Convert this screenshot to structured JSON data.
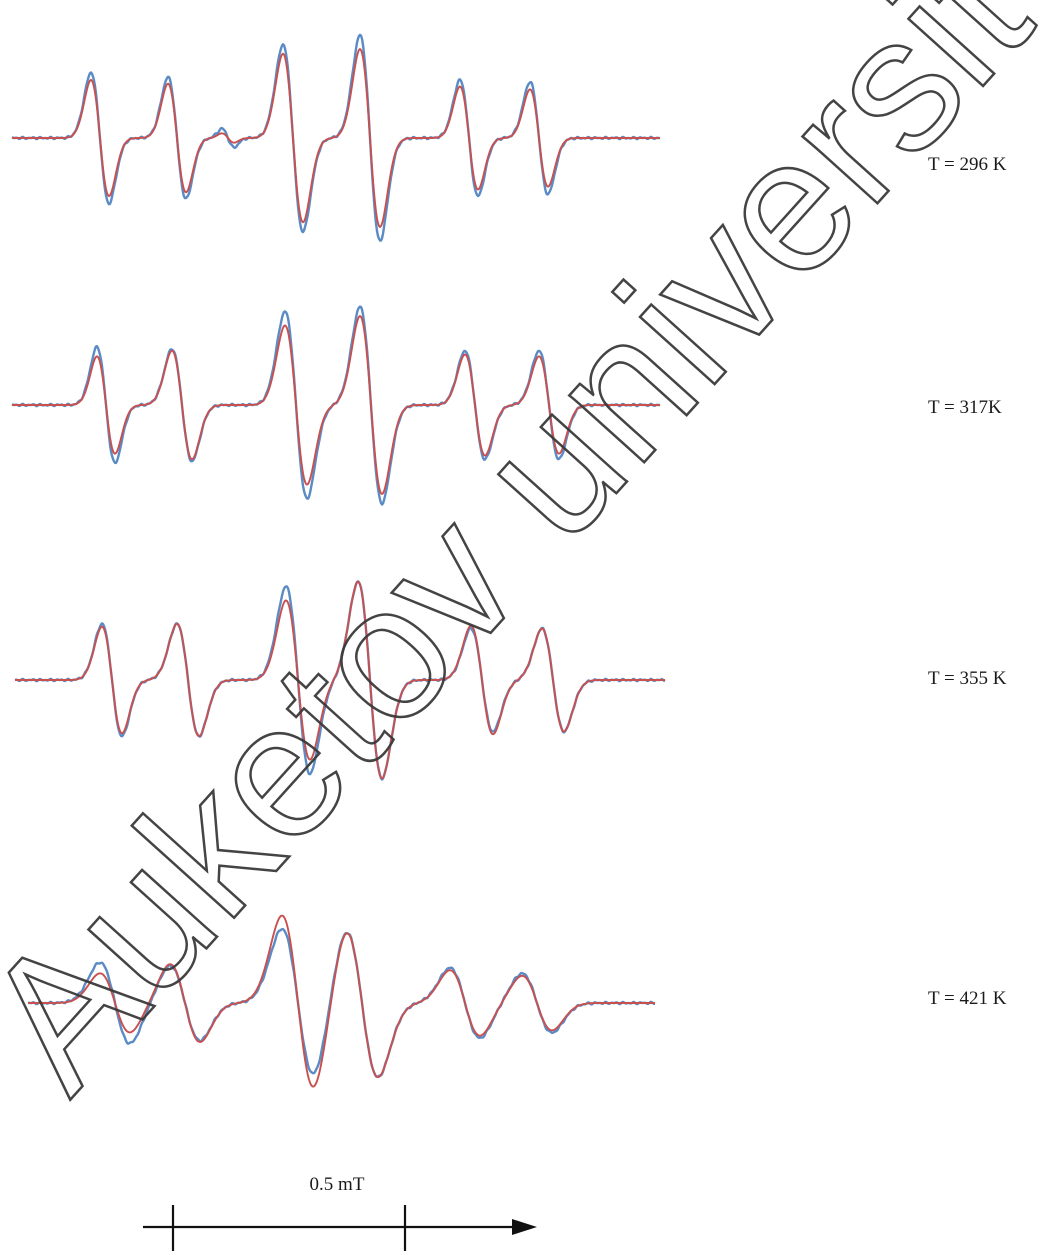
{
  "chart_data": {
    "type": "line",
    "title": "",
    "xlabel": "",
    "ylabel": "",
    "grid": false,
    "legend": "none",
    "colors": {
      "experimental": "#5b8bc4",
      "simulated": "#c8504f",
      "text": "#1a1a1a"
    },
    "scale_bar": {
      "label": "0.5 mT",
      "value_mT": 0.5
    },
    "spectra": [
      {
        "label": "T = 296 K",
        "lines": [
          {
            "x": 100,
            "w": 9,
            "a": 0.7,
            "s": 0.62
          },
          {
            "x": 177,
            "w": 9,
            "a": 0.65,
            "s": 0.58
          },
          {
            "x": 228,
            "w": 6,
            "a": 0.1,
            "s": 0.05
          },
          {
            "x": 293,
            "w": 10,
            "a": 1.0,
            "s": 0.9
          },
          {
            "x": 370,
            "w": 10,
            "a": 1.1,
            "s": 0.95
          },
          {
            "x": 469,
            "w": 9,
            "a": 0.62,
            "s": 0.55
          },
          {
            "x": 539,
            "w": 9,
            "a": 0.6,
            "s": 0.52
          }
        ]
      },
      {
        "label": "T = 317K",
        "lines": [
          {
            "x": 106,
            "w": 9,
            "a": 0.62,
            "s": 0.52
          },
          {
            "x": 182,
            "w": 10,
            "a": 0.6,
            "s": 0.58
          },
          {
            "x": 296,
            "w": 11,
            "a": 1.0,
            "s": 0.85
          },
          {
            "x": 371,
            "w": 11,
            "a": 1.05,
            "s": 0.95
          },
          {
            "x": 475,
            "w": 10,
            "a": 0.58,
            "s": 0.54
          },
          {
            "x": 549,
            "w": 10,
            "a": 0.58,
            "s": 0.52
          }
        ]
      },
      {
        "label": "T = 355 K",
        "lines": [
          {
            "x": 112,
            "w": 10,
            "a": 0.6,
            "s": 0.57
          },
          {
            "x": 188,
            "w": 11,
            "a": 0.6,
            "s": 0.6
          },
          {
            "x": 298,
            "w": 12,
            "a": 1.0,
            "s": 0.85
          },
          {
            "x": 370,
            "w": 12,
            "a": 1.05,
            "s": 1.05
          },
          {
            "x": 482,
            "w": 11,
            "a": 0.55,
            "s": 0.58
          },
          {
            "x": 553,
            "w": 11,
            "a": 0.55,
            "s": 0.55
          }
        ]
      },
      {
        "label": "T = 421 K",
        "lines": [
          {
            "x": 115,
            "w": 15,
            "a": 0.52,
            "s": 0.38
          },
          {
            "x": 185,
            "w": 15,
            "a": 0.48,
            "s": 0.5
          },
          {
            "x": 298,
            "w": 16,
            "a": 0.95,
            "s": 1.12
          },
          {
            "x": 362,
            "w": 16,
            "a": 0.95,
            "s": 0.95
          },
          {
            "x": 465,
            "w": 15,
            "a": 0.45,
            "s": 0.42
          },
          {
            "x": 537,
            "w": 15,
            "a": 0.38,
            "s": 0.35
          }
        ]
      }
    ]
  },
  "watermark": {
    "text": "Auketov university"
  }
}
